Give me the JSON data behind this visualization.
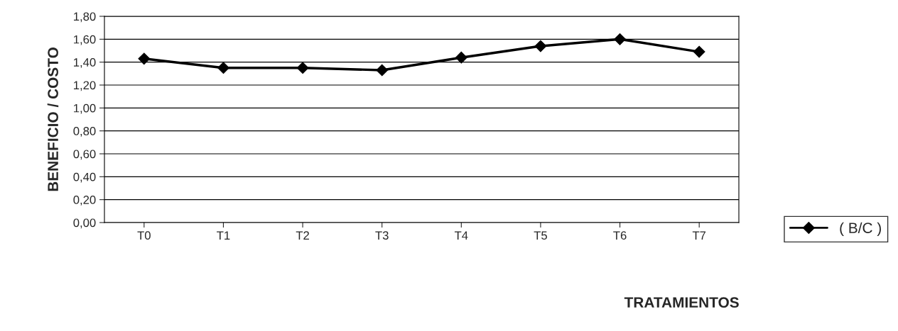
{
  "chart_data": {
    "type": "line",
    "xlabel": "TRATAMIENTOS",
    "ylabel": "BENEFICIO / COSTO",
    "categories": [
      "T0",
      "T1",
      "T2",
      "T3",
      "T4",
      "T5",
      "T6",
      "T7"
    ],
    "series": [
      {
        "name": "( B/C )",
        "color": "#000000",
        "values": [
          1.43,
          1.35,
          1.35,
          1.33,
          1.44,
          1.54,
          1.6,
          1.49
        ]
      }
    ],
    "ylim": [
      0,
      1.8
    ],
    "yticks": [
      {
        "value": 0,
        "label": "0,00"
      },
      {
        "value": 0.2,
        "label": "0,20"
      },
      {
        "value": 0.4,
        "label": "0,40"
      },
      {
        "value": 0.6,
        "label": "0,60"
      },
      {
        "value": 0.8,
        "label": "0,80"
      },
      {
        "value": 1.0,
        "label": "1,00"
      },
      {
        "value": 1.2,
        "label": "1,20"
      },
      {
        "value": 1.4,
        "label": "1,40"
      },
      {
        "value": 1.6,
        "label": "1,60"
      },
      {
        "value": 1.8,
        "label": "1,80"
      }
    ],
    "grid": "y",
    "legend": "right",
    "marker": "diamond",
    "line_style": "solid"
  }
}
